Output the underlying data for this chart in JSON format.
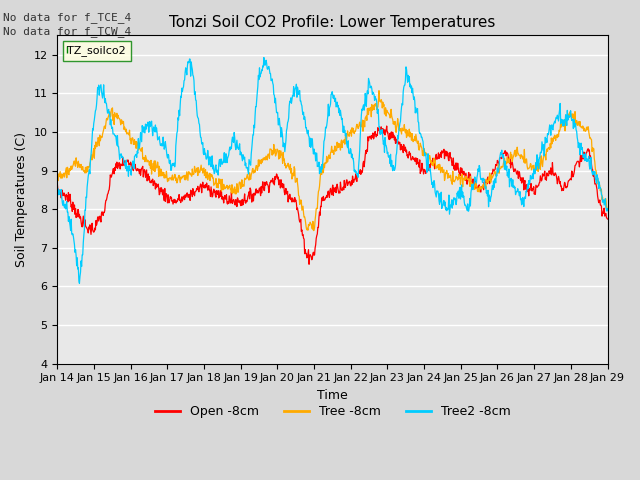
{
  "title": "Tonzi Soil CO2 Profile: Lower Temperatures",
  "xlabel": "Time",
  "ylabel": "Soil Temperatures (C)",
  "ylim": [
    4.0,
    12.5
  ],
  "yticks": [
    4.0,
    5.0,
    6.0,
    7.0,
    8.0,
    9.0,
    10.0,
    11.0,
    12.0
  ],
  "annotations": [
    "No data for f_TCE_4",
    "No data for f_TCW_4"
  ],
  "legend_label": "TZ_soilco2",
  "series_labels": [
    "Open -8cm",
    "Tree -8cm",
    "Tree2 -8cm"
  ],
  "series_colors": [
    "#ff0000",
    "#ffaa00",
    "#00ccff"
  ],
  "background_color": "#d8d8d8",
  "plot_bg_color": "#e8e8e8",
  "xtick_labels": [
    "Jan 14",
    "Jan 15",
    "Jan 16",
    "Jan 17",
    "Jan 18",
    "Jan 19",
    "Jan 20",
    "Jan 21",
    "Jan 22",
    "Jan 23",
    "Jan 24",
    "Jan 25",
    "Jan 26",
    "Jan 27",
    "Jan 28",
    "Jan 29"
  ]
}
